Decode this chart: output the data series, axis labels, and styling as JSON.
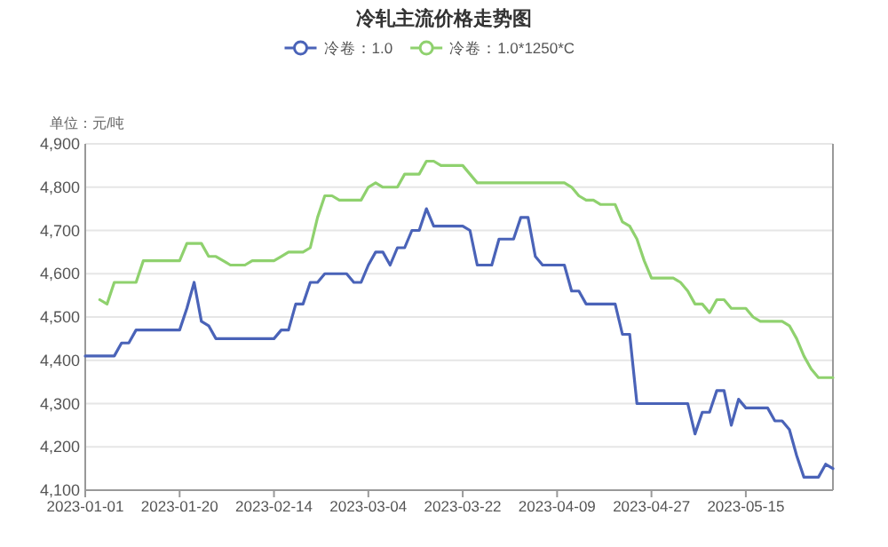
{
  "chart_data": {
    "type": "line",
    "title": "冷轧主流价格走势图",
    "ylabel": "单位：元/吨",
    "categories": [
      "2023-01-01",
      null,
      null,
      null,
      null,
      null,
      null,
      null,
      null,
      null,
      null,
      null,
      null,
      "2023-01-20",
      null,
      null,
      null,
      null,
      null,
      null,
      null,
      null,
      null,
      null,
      null,
      null,
      "2023-02-14",
      null,
      null,
      null,
      null,
      null,
      null,
      null,
      null,
      null,
      null,
      null,
      null,
      "2023-03-04",
      null,
      null,
      null,
      null,
      null,
      null,
      null,
      null,
      null,
      null,
      null,
      null,
      "2023-03-22",
      null,
      null,
      null,
      null,
      null,
      null,
      null,
      null,
      null,
      null,
      null,
      null,
      "2023-04-09",
      null,
      null,
      null,
      null,
      null,
      null,
      null,
      null,
      null,
      null,
      null,
      null,
      "2023-04-27",
      null,
      null,
      null,
      null,
      null,
      null,
      null,
      null,
      null,
      null,
      null,
      null,
      "2023-05-15",
      null,
      null,
      null,
      null,
      null,
      null,
      null,
      null,
      null,
      null,
      null,
      null
    ],
    "series": [
      {
        "name": "冷卷：1.0",
        "color": "#4a63b8",
        "values": [
          4410,
          4410,
          4410,
          4410,
          4410,
          4440,
          4440,
          4470,
          4470,
          4470,
          4470,
          4470,
          4470,
          4470,
          4520,
          4580,
          4490,
          4480,
          4450,
          4450,
          4450,
          4450,
          4450,
          4450,
          4450,
          4450,
          4450,
          4470,
          4470,
          4530,
          4530,
          4580,
          4580,
          4600,
          4600,
          4600,
          4600,
          4580,
          4580,
          4620,
          4650,
          4650,
          4620,
          4660,
          4660,
          4700,
          4700,
          4750,
          4710,
          4710,
          4710,
          4710,
          4710,
          4700,
          4620,
          4620,
          4620,
          4680,
          4680,
          4680,
          4730,
          4730,
          4640,
          4620,
          4620,
          4620,
          4620,
          4560,
          4560,
          4530,
          4530,
          4530,
          4530,
          4530,
          4460,
          4460,
          4300,
          4300,
          4300,
          4300,
          4300,
          4300,
          4300,
          4300,
          4230,
          4280,
          4280,
          4330,
          4330,
          4250,
          4310,
          4290,
          4290,
          4290,
          4290,
          4260,
          4260,
          4240,
          4180,
          4130,
          4130,
          4130,
          4160,
          4150
        ]
      },
      {
        "name": "冷卷：1.0*1250*C",
        "color": "#8fd16e",
        "values": [
          null,
          null,
          4540,
          4530,
          4580,
          4580,
          4580,
          4580,
          4630,
          4630,
          4630,
          4630,
          4630,
          4630,
          4670,
          4670,
          4670,
          4640,
          4640,
          4630,
          4620,
          4620,
          4620,
          4630,
          4630,
          4630,
          4630,
          4640,
          4650,
          4650,
          4650,
          4660,
          4730,
          4780,
          4780,
          4770,
          4770,
          4770,
          4770,
          4800,
          4810,
          4800,
          4800,
          4800,
          4830,
          4830,
          4830,
          4860,
          4860,
          4850,
          4850,
          4850,
          4850,
          4830,
          4810,
          4810,
          4810,
          4810,
          4810,
          4810,
          4810,
          4810,
          4810,
          4810,
          4810,
          4810,
          4810,
          4800,
          4780,
          4770,
          4770,
          4760,
          4760,
          4760,
          4720,
          4710,
          4680,
          4630,
          4590,
          4590,
          4590,
          4590,
          4580,
          4560,
          4530,
          4530,
          4510,
          4540,
          4540,
          4520,
          4520,
          4520,
          4500,
          4490,
          4490,
          4490,
          4490,
          4480,
          4450,
          4410,
          4380,
          4360,
          4360,
          4360
        ]
      }
    ],
    "ylim": [
      4100,
      4900
    ],
    "yticks": [
      {
        "value": 4100,
        "label": "4,100"
      },
      {
        "value": 4200,
        "label": "4,200"
      },
      {
        "value": 4300,
        "label": "4,300"
      },
      {
        "value": 4400,
        "label": "4,400"
      },
      {
        "value": 4500,
        "label": "4,500"
      },
      {
        "value": 4600,
        "label": "4,600"
      },
      {
        "value": 4700,
        "label": "4,700"
      },
      {
        "value": 4800,
        "label": "4,800"
      },
      {
        "value": 4900,
        "label": "4,900"
      }
    ],
    "grid": "y",
    "legend": "top",
    "marker": "none",
    "line_style": "solid"
  }
}
